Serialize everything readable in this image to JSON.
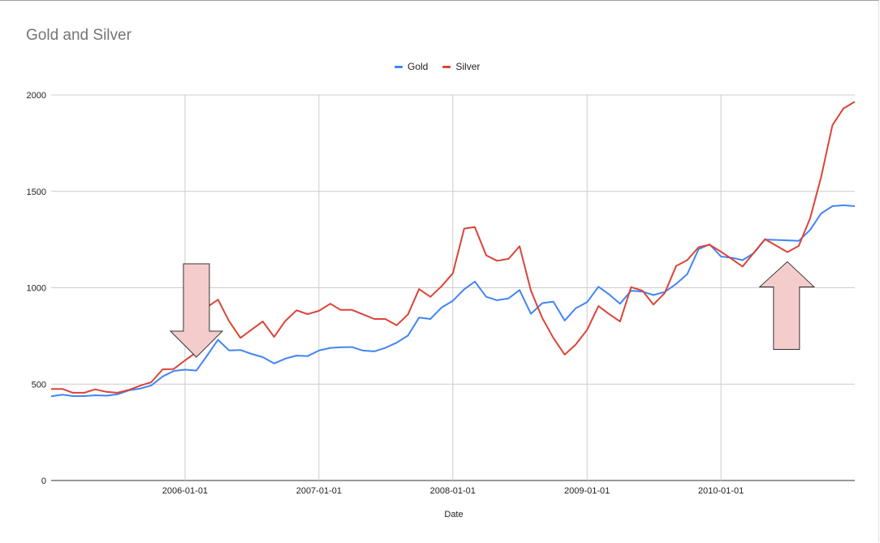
{
  "chart_data": {
    "type": "line",
    "title": "Gold and Silver",
    "xlabel": "Date",
    "ylabel": "",
    "ylim": [
      0,
      2000
    ],
    "yticks": [
      "0",
      "500",
      "1000",
      "1500",
      "2000"
    ],
    "xticks": [
      "2006-01-01",
      "2007-01-01",
      "2008-01-01",
      "2009-01-01",
      "2010-01-01"
    ],
    "legend_position": "top",
    "grid": true,
    "series": [
      {
        "name": "Gold",
        "color": "#4285f4",
        "points": [
          [
            "2005-01-01",
            437
          ],
          [
            "2005-02-01",
            445
          ],
          [
            "2005-03-01",
            438
          ],
          [
            "2005-04-01",
            438
          ],
          [
            "2005-05-01",
            442
          ],
          [
            "2005-06-01",
            440
          ],
          [
            "2005-07-01",
            447
          ],
          [
            "2005-08-01",
            468
          ],
          [
            "2005-09-01",
            477
          ],
          [
            "2005-10-01",
            493
          ],
          [
            "2005-11-01",
            540
          ],
          [
            "2005-12-01",
            568
          ],
          [
            "2006-01-01",
            575
          ],
          [
            "2006-02-01",
            570
          ],
          [
            "2006-03-01",
            645
          ],
          [
            "2006-04-01",
            730
          ],
          [
            "2006-05-01",
            675
          ],
          [
            "2006-06-01",
            677
          ],
          [
            "2006-07-01",
            657
          ],
          [
            "2006-08-01",
            640
          ],
          [
            "2006-09-01",
            607
          ],
          [
            "2006-10-01",
            632
          ],
          [
            "2006-11-01",
            648
          ],
          [
            "2006-12-01",
            645
          ],
          [
            "2007-01-01",
            674
          ],
          [
            "2007-02-01",
            688
          ],
          [
            "2007-03-01",
            691
          ],
          [
            "2007-04-01",
            692
          ],
          [
            "2007-05-01",
            674
          ],
          [
            "2007-06-01",
            670
          ],
          [
            "2007-07-01",
            688
          ],
          [
            "2007-08-01",
            715
          ],
          [
            "2007-09-01",
            752
          ],
          [
            "2007-10-01",
            845
          ],
          [
            "2007-11-01",
            838
          ],
          [
            "2007-12-01",
            897
          ],
          [
            "2008-01-01",
            932
          ],
          [
            "2008-02-01",
            992
          ],
          [
            "2008-03-01",
            1032
          ],
          [
            "2008-04-01",
            953
          ],
          [
            "2008-05-01",
            935
          ],
          [
            "2008-06-01",
            945
          ],
          [
            "2008-07-01",
            988
          ],
          [
            "2008-08-01",
            865
          ],
          [
            "2008-09-01",
            920
          ],
          [
            "2008-10-01",
            928
          ],
          [
            "2008-11-01",
            830
          ],
          [
            "2008-12-01",
            893
          ],
          [
            "2009-01-01",
            925
          ],
          [
            "2009-02-01",
            1005
          ],
          [
            "2009-03-01",
            967
          ],
          [
            "2009-04-01",
            917
          ],
          [
            "2009-05-01",
            985
          ],
          [
            "2009-06-01",
            980
          ],
          [
            "2009-07-01",
            962
          ],
          [
            "2009-08-01",
            978
          ],
          [
            "2009-09-01",
            1020
          ],
          [
            "2009-10-01",
            1070
          ],
          [
            "2009-11-01",
            1200
          ],
          [
            "2009-12-01",
            1225
          ],
          [
            "2010-01-01",
            1162
          ],
          [
            "2010-02-01",
            1155
          ],
          [
            "2010-03-01",
            1143
          ],
          [
            "2010-04-01",
            1180
          ],
          [
            "2010-05-01",
            1250
          ],
          [
            "2010-06-01",
            1248
          ],
          [
            "2010-07-01",
            1246
          ],
          [
            "2010-08-01",
            1243
          ],
          [
            "2010-09-01",
            1300
          ],
          [
            "2010-10-01",
            1385
          ],
          [
            "2010-11-01",
            1423
          ],
          [
            "2010-12-01",
            1428
          ],
          [
            "2011-01-01",
            1423
          ]
        ]
      },
      {
        "name": "Silver",
        "color": "#db4437",
        "points": [
          [
            "2005-01-01",
            475
          ],
          [
            "2005-02-01",
            475
          ],
          [
            "2005-03-01",
            455
          ],
          [
            "2005-04-01",
            455
          ],
          [
            "2005-05-01",
            473
          ],
          [
            "2005-06-01",
            460
          ],
          [
            "2005-07-01",
            455
          ],
          [
            "2005-08-01",
            470
          ],
          [
            "2005-09-01",
            492
          ],
          [
            "2005-10-01",
            510
          ],
          [
            "2005-11-01",
            577
          ],
          [
            "2005-12-01",
            578
          ],
          [
            "2006-01-01",
            623
          ],
          [
            "2006-02-01",
            665
          ],
          [
            "2006-03-01",
            898
          ],
          [
            "2006-04-01",
            938
          ],
          [
            "2006-05-01",
            827
          ],
          [
            "2006-06-01",
            740
          ],
          [
            "2006-07-01",
            782
          ],
          [
            "2006-08-01",
            825
          ],
          [
            "2006-09-01",
            745
          ],
          [
            "2006-10-01",
            827
          ],
          [
            "2006-11-01",
            883
          ],
          [
            "2006-12-01",
            863
          ],
          [
            "2007-01-01",
            880
          ],
          [
            "2007-02-01",
            917
          ],
          [
            "2007-03-01",
            885
          ],
          [
            "2007-04-01",
            885
          ],
          [
            "2007-05-01",
            862
          ],
          [
            "2007-06-01",
            838
          ],
          [
            "2007-07-01",
            838
          ],
          [
            "2007-08-01",
            805
          ],
          [
            "2007-09-01",
            862
          ],
          [
            "2007-10-01",
            993
          ],
          [
            "2007-11-01",
            953
          ],
          [
            "2007-12-01",
            1007
          ],
          [
            "2008-01-01",
            1075
          ],
          [
            "2008-02-01",
            1307
          ],
          [
            "2008-03-01",
            1315
          ],
          [
            "2008-04-01",
            1168
          ],
          [
            "2008-05-01",
            1140
          ],
          [
            "2008-06-01",
            1150
          ],
          [
            "2008-07-01",
            1215
          ],
          [
            "2008-08-01",
            985
          ],
          [
            "2008-09-01",
            843
          ],
          [
            "2008-10-01",
            740
          ],
          [
            "2008-11-01",
            653
          ],
          [
            "2008-12-01",
            705
          ],
          [
            "2009-01-01",
            782
          ],
          [
            "2009-02-01",
            905
          ],
          [
            "2009-03-01",
            865
          ],
          [
            "2009-04-01",
            825
          ],
          [
            "2009-05-01",
            1003
          ],
          [
            "2009-06-01",
            985
          ],
          [
            "2009-07-01",
            913
          ],
          [
            "2009-08-01",
            973
          ],
          [
            "2009-09-01",
            1113
          ],
          [
            "2009-10-01",
            1143
          ],
          [
            "2009-11-01",
            1210
          ],
          [
            "2009-12-01",
            1223
          ],
          [
            "2010-01-01",
            1187
          ],
          [
            "2010-02-01",
            1147
          ],
          [
            "2010-03-01",
            1110
          ],
          [
            "2010-04-01",
            1182
          ],
          [
            "2010-05-01",
            1252
          ],
          [
            "2010-06-01",
            1218
          ],
          [
            "2010-07-01",
            1185
          ],
          [
            "2010-08-01",
            1217
          ],
          [
            "2010-09-01",
            1360
          ],
          [
            "2010-10-01",
            1573
          ],
          [
            "2010-11-01",
            1843
          ],
          [
            "2010-12-01",
            1930
          ],
          [
            "2011-01-01",
            1965
          ]
        ]
      }
    ],
    "annotations": [
      {
        "type": "arrow-down",
        "color": "#f4cccc",
        "at_date": "2006-01-01",
        "at_value": 640
      },
      {
        "type": "arrow-up",
        "color": "#f4cccc",
        "at_date": "2010-07-01",
        "at_value": 1135
      }
    ]
  }
}
